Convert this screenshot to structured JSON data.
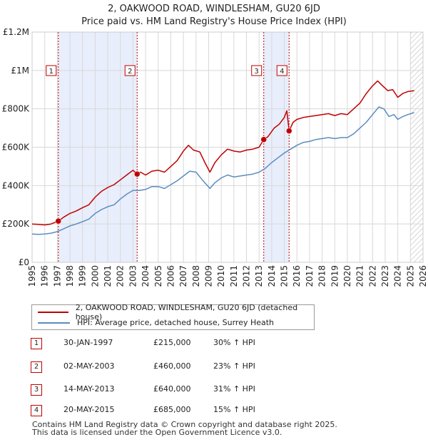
{
  "header": {
    "title_line1": "2, OAKWOOD ROAD, WINDLESHAM, GU20 6JD",
    "title_line2": "Price paid vs. HM Land Registry's House Price Index (HPI)"
  },
  "colors": {
    "price": "#c00000",
    "hpi": "#5b8cc0",
    "shade": "#e8eefb",
    "grid": "#d8d8d8"
  },
  "chart_data": {
    "type": "line",
    "title": "Price paid vs. HM Land Registry's House Price Index (HPI)",
    "xlim": [
      1995,
      2026
    ],
    "ylim": [
      0,
      1200000
    ],
    "x_ticks": [
      "1995",
      "1996",
      "1997",
      "1998",
      "1999",
      "2000",
      "2001",
      "2002",
      "2003",
      "2004",
      "2005",
      "2006",
      "2007",
      "2008",
      "2009",
      "2010",
      "2011",
      "2012",
      "2013",
      "2014",
      "2015",
      "2016",
      "2017",
      "2018",
      "2019",
      "2020",
      "2021",
      "2022",
      "2023",
      "2024",
      "2025",
      "2026"
    ],
    "y_ticks": [
      {
        "value": 0,
        "label": "£0"
      },
      {
        "value": 200000,
        "label": "£200K"
      },
      {
        "value": 400000,
        "label": "£400K"
      },
      {
        "value": 600000,
        "label": "£600K"
      },
      {
        "value": 800000,
        "label": "£800K"
      },
      {
        "value": 1000000,
        "label": "£1M"
      },
      {
        "value": 1200000,
        "label": "£1.2M"
      }
    ],
    "shaded_ranges": [
      [
        1997.08,
        2003.33
      ],
      [
        2013.37,
        2015.38
      ]
    ],
    "hatched_from": 2025.0,
    "series": [
      {
        "name": "2, OAKWOOD ROAD, WINDLESHAM, GU20 6JD (detached house)",
        "points": [
          [
            1995,
            200000
          ],
          [
            1995.5,
            198000
          ],
          [
            1996,
            195000
          ],
          [
            1996.5,
            200000
          ],
          [
            1997.08,
            215000
          ],
          [
            1997.5,
            235000
          ],
          [
            1998,
            255000
          ],
          [
            1998.5,
            268000
          ],
          [
            1999,
            285000
          ],
          [
            1999.5,
            300000
          ],
          [
            2000,
            340000
          ],
          [
            2000.5,
            370000
          ],
          [
            2001,
            390000
          ],
          [
            2001.5,
            405000
          ],
          [
            2002,
            430000
          ],
          [
            2002.5,
            455000
          ],
          [
            2003,
            480000
          ],
          [
            2003.33,
            460000
          ],
          [
            2003.6,
            470000
          ],
          [
            2004,
            455000
          ],
          [
            2004.5,
            475000
          ],
          [
            2005,
            480000
          ],
          [
            2005.5,
            470000
          ],
          [
            2006,
            500000
          ],
          [
            2006.5,
            530000
          ],
          [
            2007,
            580000
          ],
          [
            2007.4,
            610000
          ],
          [
            2007.8,
            585000
          ],
          [
            2008.3,
            575000
          ],
          [
            2008.7,
            520000
          ],
          [
            2009.1,
            470000
          ],
          [
            2009.5,
            520000
          ],
          [
            2010,
            560000
          ],
          [
            2010.5,
            590000
          ],
          [
            2011,
            580000
          ],
          [
            2011.5,
            575000
          ],
          [
            2012,
            585000
          ],
          [
            2012.5,
            590000
          ],
          [
            2013,
            600000
          ],
          [
            2013.37,
            640000
          ],
          [
            2013.7,
            655000
          ],
          [
            2014.2,
            700000
          ],
          [
            2014.6,
            720000
          ],
          [
            2015,
            755000
          ],
          [
            2015.2,
            790000
          ],
          [
            2015.38,
            685000
          ],
          [
            2015.7,
            730000
          ],
          [
            2016,
            745000
          ],
          [
            2016.5,
            755000
          ],
          [
            2017,
            760000
          ],
          [
            2017.5,
            765000
          ],
          [
            2018,
            770000
          ],
          [
            2018.5,
            775000
          ],
          [
            2019,
            765000
          ],
          [
            2019.5,
            775000
          ],
          [
            2020,
            770000
          ],
          [
            2020.5,
            800000
          ],
          [
            2021,
            830000
          ],
          [
            2021.5,
            880000
          ],
          [
            2022,
            920000
          ],
          [
            2022.4,
            945000
          ],
          [
            2022.8,
            920000
          ],
          [
            2023.2,
            895000
          ],
          [
            2023.6,
            900000
          ],
          [
            2024,
            860000
          ],
          [
            2024.4,
            880000
          ],
          [
            2024.8,
            890000
          ],
          [
            2025.3,
            895000
          ]
        ]
      },
      {
        "name": "HPI: Average price, detached house, Surrey Heath",
        "points": [
          [
            1995,
            148000
          ],
          [
            1995.5,
            146000
          ],
          [
            1996,
            148000
          ],
          [
            1996.5,
            152000
          ],
          [
            1997,
            160000
          ],
          [
            1997.5,
            175000
          ],
          [
            1998,
            190000
          ],
          [
            1998.5,
            200000
          ],
          [
            1999,
            212000
          ],
          [
            1999.5,
            225000
          ],
          [
            2000,
            255000
          ],
          [
            2000.5,
            275000
          ],
          [
            2001,
            290000
          ],
          [
            2001.5,
            300000
          ],
          [
            2002,
            330000
          ],
          [
            2002.5,
            355000
          ],
          [
            2003,
            375000
          ],
          [
            2003.5,
            375000
          ],
          [
            2004,
            380000
          ],
          [
            2004.5,
            395000
          ],
          [
            2005,
            395000
          ],
          [
            2005.5,
            385000
          ],
          [
            2006,
            405000
          ],
          [
            2006.5,
            425000
          ],
          [
            2007,
            450000
          ],
          [
            2007.5,
            475000
          ],
          [
            2008,
            470000
          ],
          [
            2008.5,
            430000
          ],
          [
            2009.1,
            385000
          ],
          [
            2009.5,
            415000
          ],
          [
            2010,
            440000
          ],
          [
            2010.5,
            455000
          ],
          [
            2011,
            445000
          ],
          [
            2011.5,
            450000
          ],
          [
            2012,
            455000
          ],
          [
            2012.5,
            460000
          ],
          [
            2013,
            470000
          ],
          [
            2013.5,
            490000
          ],
          [
            2014,
            520000
          ],
          [
            2014.5,
            545000
          ],
          [
            2015,
            570000
          ],
          [
            2015.5,
            590000
          ],
          [
            2016,
            610000
          ],
          [
            2016.5,
            625000
          ],
          [
            2017,
            630000
          ],
          [
            2017.5,
            640000
          ],
          [
            2018,
            645000
          ],
          [
            2018.5,
            650000
          ],
          [
            2019,
            645000
          ],
          [
            2019.5,
            650000
          ],
          [
            2020,
            650000
          ],
          [
            2020.5,
            670000
          ],
          [
            2021,
            700000
          ],
          [
            2021.5,
            730000
          ],
          [
            2022,
            770000
          ],
          [
            2022.5,
            810000
          ],
          [
            2022.9,
            800000
          ],
          [
            2023.3,
            760000
          ],
          [
            2023.7,
            770000
          ],
          [
            2024,
            745000
          ],
          [
            2024.4,
            760000
          ],
          [
            2024.8,
            770000
          ],
          [
            2025.3,
            780000
          ]
        ]
      }
    ],
    "sales": [
      {
        "num": "1",
        "x": 1997.08,
        "price": 215000
      },
      {
        "num": "2",
        "x": 2003.33,
        "price": 460000
      },
      {
        "num": "3",
        "x": 2013.37,
        "price": 640000
      },
      {
        "num": "4",
        "x": 2015.38,
        "price": 685000
      }
    ]
  },
  "legend": {
    "price_label": "2, OAKWOOD ROAD, WINDLESHAM, GU20 6JD (detached house)",
    "hpi_label": "HPI: Average price, detached house, Surrey Heath"
  },
  "table": [
    {
      "num": "1",
      "date": "30-JAN-1997",
      "price": "£215,000",
      "hpi": "30% ↑ HPI"
    },
    {
      "num": "2",
      "date": "02-MAY-2003",
      "price": "£460,000",
      "hpi": "23% ↑ HPI"
    },
    {
      "num": "3",
      "date": "14-MAY-2013",
      "price": "£640,000",
      "hpi": "31% ↑ HPI"
    },
    {
      "num": "4",
      "date": "20-MAY-2015",
      "price": "£685,000",
      "hpi": "15% ↑ HPI"
    }
  ],
  "footer": {
    "line1": "Contains HM Land Registry data © Crown copyright and database right 2025.",
    "line2": "This data is licensed under the Open Government Licence v3.0."
  }
}
